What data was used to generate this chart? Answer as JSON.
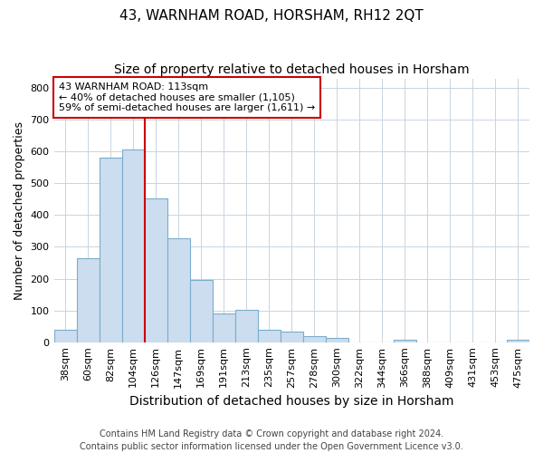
{
  "title": "43, WARNHAM ROAD, HORSHAM, RH12 2QT",
  "subtitle": "Size of property relative to detached houses in Horsham",
  "xlabel": "Distribution of detached houses by size in Horsham",
  "ylabel": "Number of detached properties",
  "footnote": "Contains HM Land Registry data © Crown copyright and database right 2024.\nContains public sector information licensed under the Open Government Licence v3.0.",
  "categories": [
    "38sqm",
    "60sqm",
    "82sqm",
    "104sqm",
    "126sqm",
    "147sqm",
    "169sqm",
    "191sqm",
    "213sqm",
    "235sqm",
    "257sqm",
    "278sqm",
    "300sqm",
    "322sqm",
    "344sqm",
    "366sqm",
    "388sqm",
    "409sqm",
    "431sqm",
    "453sqm",
    "475sqm"
  ],
  "values": [
    38,
    263,
    580,
    605,
    452,
    328,
    195,
    90,
    103,
    38,
    33,
    18,
    12,
    0,
    0,
    7,
    0,
    0,
    0,
    0,
    8
  ],
  "bar_color": "#ccddf0",
  "bar_edge_color": "#7aadcc",
  "property_line_color": "#cc0000",
  "annotation_text": "43 WARNHAM ROAD: 113sqm\n← 40% of detached houses are smaller (1,105)\n59% of semi-detached houses are larger (1,611) →",
  "annotation_box_color": "#ffffff",
  "annotation_box_edge_color": "#cc0000",
  "ylim": [
    0,
    830
  ],
  "yticks": [
    0,
    100,
    200,
    300,
    400,
    500,
    600,
    700,
    800
  ],
  "background_color": "#ffffff",
  "plot_bg_color": "#ffffff",
  "grid_color": "#c8d4e0",
  "title_fontsize": 11,
  "subtitle_fontsize": 10,
  "xlabel_fontsize": 10,
  "ylabel_fontsize": 9,
  "tick_fontsize": 8,
  "annotation_fontsize": 8,
  "footnote_fontsize": 7
}
